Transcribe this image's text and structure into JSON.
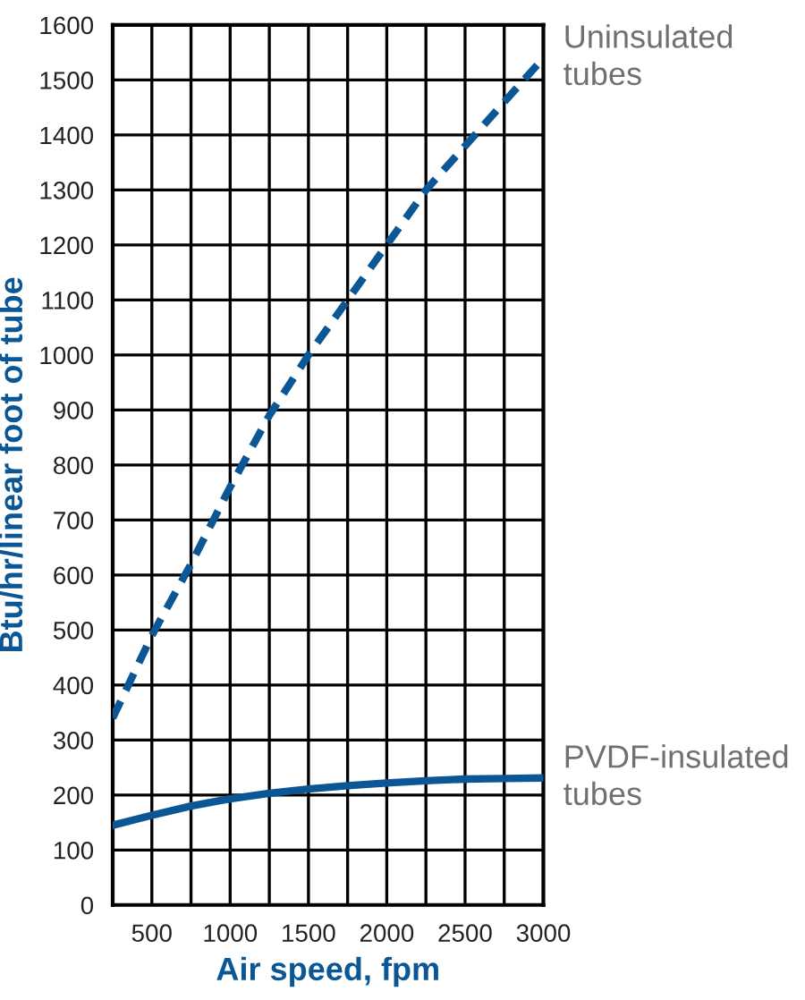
{
  "chart_data": {
    "type": "line",
    "xlabel": "Air speed, fpm",
    "ylabel": "Btu/hr/linear foot of tube",
    "x": [
      250,
      500,
      750,
      1000,
      1250,
      1500,
      1750,
      2000,
      2250,
      2500,
      2750,
      3000
    ],
    "series": [
      {
        "name": "Uninsulated\ntubes",
        "color": "#0b5796",
        "line_style": "dashed",
        "values": [
          340,
          490,
          620,
          760,
          890,
          1000,
          1100,
          1200,
          1300,
          1380,
          1460,
          1540
        ]
      },
      {
        "name": "PVDF-insulated\ntubes",
        "color": "#0b5796",
        "line_style": "solid",
        "values": [
          145,
          163,
          180,
          193,
          203,
          211,
          217,
          222,
          226,
          229,
          230,
          231
        ]
      }
    ],
    "xlim": [
      250,
      3000
    ],
    "ylim": [
      0,
      1600
    ],
    "xticks": [
      {
        "value": 250,
        "label": null
      },
      500,
      {
        "value": 750,
        "label": null
      },
      1000,
      {
        "value": 1250,
        "label": null
      },
      1500,
      {
        "value": 1750,
        "label": null
      },
      2000,
      {
        "value": 2250,
        "label": null
      },
      2500,
      {
        "value": 2750,
        "label": null
      },
      3000
    ],
    "yticks": [
      0,
      100,
      200,
      300,
      400,
      500,
      600,
      700,
      800,
      900,
      1000,
      1100,
      1200,
      1300,
      1400,
      1500,
      1600
    ],
    "grid": true,
    "legend": false,
    "marker": "none"
  }
}
